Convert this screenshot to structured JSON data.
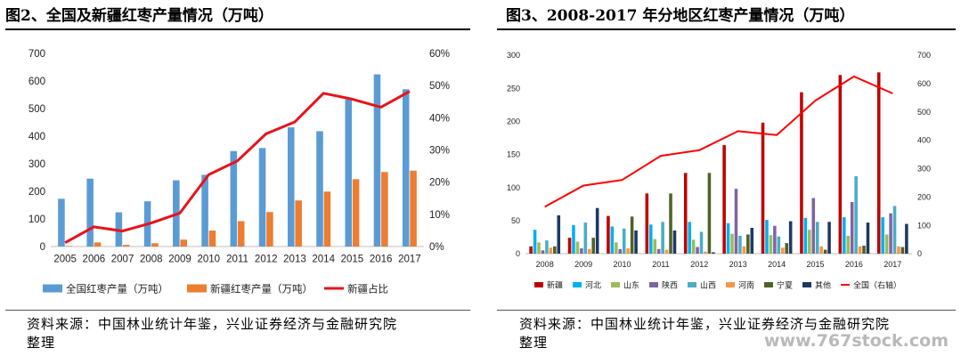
{
  "left": {
    "title": "图2、全国及新疆红枣产量情况（万吨）",
    "source_line1": "资料来源：中国林业统计年鉴，兴业证券经济与金融研究院",
    "source_line2": "整理"
  },
  "right": {
    "title": "图3、2008-2017 年分地区红枣产量情况（万吨）",
    "source_line1": "资料来源：中国林业统计年鉴，兴业证券经济与金融研究院",
    "source_line2": "整理"
  },
  "watermark": "www.767stock.com",
  "chart_data": [
    {
      "type": "bar",
      "categories": [
        "2005",
        "2006",
        "2007",
        "2008",
        "2009",
        "2010",
        "2011",
        "2012",
        "2013",
        "2014",
        "2015",
        "2016",
        "2017"
      ],
      "series": [
        {
          "name": "全国红枣产量（万吨）",
          "type": "bar",
          "axis": "left",
          "color": "#5b9bd5",
          "values": [
            173,
            246,
            124,
            164,
            240,
            260,
            346,
            357,
            432,
            418,
            533,
            624,
            570
          ]
        },
        {
          "name": "新疆红枣产量（万吨）",
          "type": "bar",
          "axis": "left",
          "color": "#ed7d31",
          "values": [
            2,
            15,
            6,
            12,
            25,
            58,
            92,
            125,
            167,
            199,
            244,
            270,
            275
          ]
        },
        {
          "name": "新疆占比",
          "type": "line",
          "axis": "right",
          "color": "#e8131a",
          "values": [
            1.2,
            6.1,
            4.8,
            7.3,
            10.4,
            22.3,
            26.6,
            35.0,
            38.7,
            47.6,
            45.8,
            43.3,
            48.2
          ]
        }
      ],
      "ylim": [
        0,
        700
      ],
      "yticks": [
        "0",
        "100",
        "200",
        "300",
        "400",
        "500",
        "600",
        "700"
      ],
      "y2lim": [
        0,
        60
      ],
      "y2ticks": [
        "0%",
        "10%",
        "20%",
        "30%",
        "40%",
        "50%",
        "60%"
      ],
      "legend": "bottom",
      "grid": false
    },
    {
      "type": "bar",
      "categories": [
        "2008",
        "2009",
        "2010",
        "2011",
        "2012",
        "2013",
        "2014",
        "2015",
        "2016",
        "2017"
      ],
      "series": [
        {
          "name": "新疆",
          "type": "bar",
          "axis": "left",
          "color": "#c00000",
          "values": [
            11,
            24,
            57,
            91,
            122,
            164,
            198,
            244,
            270,
            274
          ]
        },
        {
          "name": "河北",
          "type": "bar",
          "axis": "left",
          "color": "#00b0f0",
          "values": [
            36,
            43,
            41,
            44,
            48,
            46,
            51,
            54,
            55,
            55
          ]
        },
        {
          "name": "山东",
          "type": "bar",
          "axis": "left",
          "color": "#9bbb59",
          "values": [
            17,
            18,
            17,
            22,
            21,
            30,
            28,
            36,
            27,
            29
          ]
        },
        {
          "name": "陕西",
          "type": "bar",
          "axis": "left",
          "color": "#8064a2",
          "values": [
            5,
            8,
            7,
            7,
            10,
            98,
            42,
            84,
            78,
            61
          ]
        },
        {
          "name": "山西",
          "type": "bar",
          "axis": "left",
          "color": "#4bacc6",
          "values": [
            20,
            47,
            38,
            48,
            33,
            27,
            26,
            48,
            117,
            72
          ]
        },
        {
          "name": "河南",
          "type": "bar",
          "axis": "left",
          "color": "#f79646",
          "values": [
            9,
            7,
            8,
            6,
            3,
            11,
            9,
            11,
            11,
            11
          ]
        },
        {
          "name": "宁夏",
          "type": "bar",
          "axis": "left",
          "color": "#4f6228",
          "values": [
            11,
            24,
            56,
            91,
            122,
            29,
            16,
            6,
            12,
            10
          ]
        },
        {
          "name": "其他",
          "type": "bar",
          "axis": "left",
          "color": "#1f3864",
          "values": [
            58,
            69,
            35,
            35,
            2,
            39,
            49,
            48,
            47,
            45
          ]
        },
        {
          "name": "全国（右轴）",
          "type": "line",
          "axis": "right",
          "color": "#ff0000",
          "values": [
            165,
            240,
            260,
            345,
            365,
            432,
            418,
            540,
            625,
            565
          ]
        }
      ],
      "ylim": [
        0,
        300
      ],
      "yticks": [
        "0",
        "50",
        "100",
        "150",
        "200",
        "250",
        "300"
      ],
      "y2lim": [
        0,
        700
      ],
      "y2ticks": [
        "0",
        "100",
        "200",
        "300",
        "400",
        "500",
        "600",
        "700"
      ],
      "legend": "bottom",
      "grid": false
    }
  ]
}
